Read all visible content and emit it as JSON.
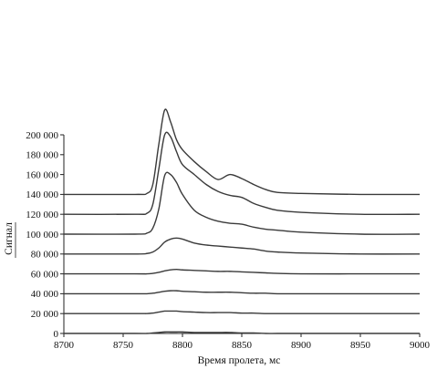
{
  "chart_data": {
    "type": "line",
    "xlabel": "Время пролета,  мс",
    "ylabel": "Сигнал",
    "xlim": [
      8700,
      9000
    ],
    "ylim": [
      0,
      200000
    ],
    "x_ticks": [
      8700,
      8750,
      8800,
      8850,
      8900,
      8950,
      9000
    ],
    "x_tick_labels": [
      "8700",
      "8750",
      "8800",
      "8850",
      "8900",
      "8950",
      "9000"
    ],
    "y_ticks": [
      0,
      20000,
      40000,
      60000,
      80000,
      100000,
      120000,
      140000,
      160000,
      180000,
      200000
    ],
    "y_tick_labels": [
      "0",
      "20 000",
      "40 000",
      "60 000",
      "80 000",
      "100 000",
      "120 000",
      "140 000",
      "160 000",
      "180 000",
      "200 000"
    ],
    "grid": false,
    "x": [
      8700,
      8760,
      8770,
      8775,
      8780,
      8785,
      8790,
      8795,
      8800,
      8810,
      8820,
      8830,
      8840,
      8850,
      8860,
      8870,
      8880,
      8900,
      8950,
      9000
    ],
    "series": [
      {
        "values": [
          0,
          0,
          0,
          500,
          1000,
          1500,
          1500,
          1500,
          1500,
          1000,
          1000,
          1000,
          1000,
          500,
          500,
          0,
          0,
          0,
          0,
          0
        ]
      },
      {
        "values": [
          20000,
          20000,
          20000,
          20500,
          21500,
          22500,
          22500,
          22500,
          22000,
          21500,
          21000,
          21000,
          21000,
          20500,
          20500,
          20000,
          20000,
          20000,
          20000,
          20000
        ]
      },
      {
        "values": [
          40000,
          40000,
          40000,
          40500,
          41500,
          42500,
          43000,
          43000,
          42500,
          42000,
          41500,
          41500,
          41500,
          41000,
          40500,
          40500,
          40000,
          40000,
          40000,
          40000
        ]
      },
      {
        "values": [
          60000,
          60000,
          60000,
          60500,
          61500,
          63000,
          64000,
          64500,
          64000,
          63500,
          63000,
          62500,
          62500,
          62000,
          61500,
          61000,
          60500,
          60000,
          60000,
          60000
        ]
      },
      {
        "values": [
          80000,
          80000,
          80500,
          82000,
          86000,
          92000,
          95000,
          96000,
          95000,
          91000,
          89000,
          88000,
          87000,
          86000,
          85000,
          83000,
          82000,
          81000,
          80000,
          80000
        ]
      },
      {
        "values": [
          100000,
          100000,
          101000,
          106000,
          125000,
          159000,
          160000,
          152000,
          140000,
          124000,
          117000,
          113000,
          111000,
          110000,
          107000,
          105000,
          104000,
          102000,
          100000,
          100000
        ]
      },
      {
        "values": [
          120000,
          120000,
          121000,
          130000,
          165000,
          200000,
          198000,
          183000,
          170000,
          160000,
          150000,
          143000,
          139000,
          137000,
          131000,
          127000,
          124000,
          122000,
          120000,
          120000
        ]
      },
      {
        "values": [
          140000,
          140000,
          141000,
          150000,
          190000,
          225000,
          213000,
          195000,
          185000,
          173000,
          163000,
          155000,
          160000,
          156000,
          150000,
          145000,
          142000,
          141000,
          140000,
          140000
        ]
      }
    ]
  }
}
